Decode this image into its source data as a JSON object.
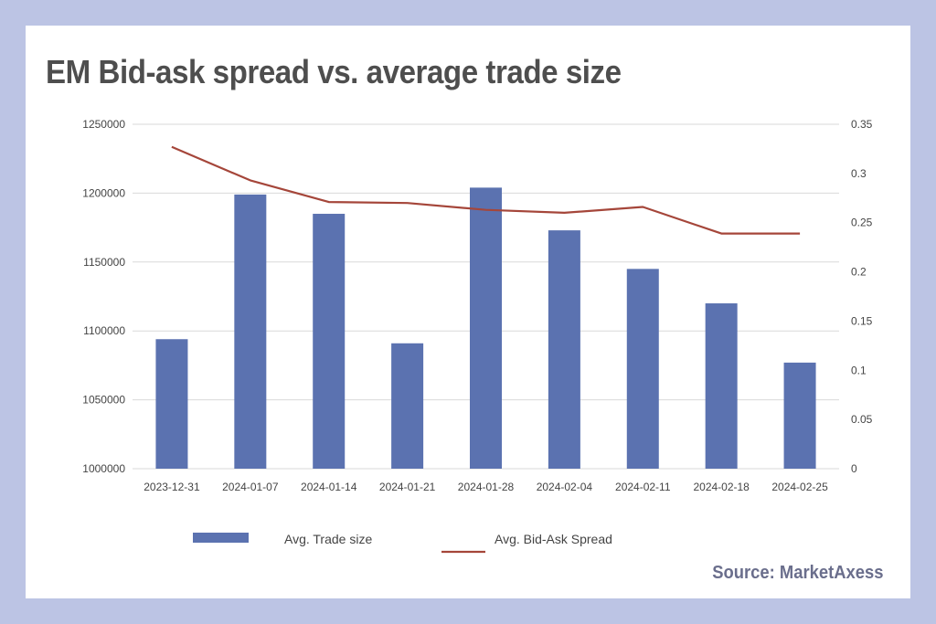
{
  "page": {
    "title": "EM Bid-ask spread vs. average trade size",
    "source": "Source: MarketAxess"
  },
  "colors": {
    "background": "#bcc4e4",
    "card": "#ffffff",
    "bar": "#5b72b0",
    "line": "#a5463a",
    "title": "#4e4e4e",
    "source": "#6a6e8c"
  },
  "chart_data": {
    "type": "bar",
    "title": "EM Bid-ask spread vs. average trade size",
    "categories": [
      "2023-12-31",
      "2024-01-07",
      "2024-01-14",
      "2024-01-21",
      "2024-01-28",
      "2024-02-04",
      "2024-02-11",
      "2024-02-18",
      "2024-02-25"
    ],
    "series": [
      {
        "name": "Avg. Trade size",
        "type": "bar",
        "axis": "left",
        "values": [
          1094000,
          1199000,
          1185000,
          1091000,
          1204000,
          1173000,
          1145000,
          1120000,
          1077000
        ]
      },
      {
        "name": "Avg. Bid-Ask Spread",
        "type": "line",
        "axis": "right",
        "values": [
          0.327,
          0.293,
          0.271,
          0.27,
          0.263,
          0.26,
          0.266,
          0.239,
          0.239
        ]
      }
    ],
    "y_left": {
      "min": 1000000,
      "max": 1250000,
      "ticks": [
        "1000000",
        "1050000",
        "1100000",
        "1150000",
        "1200000",
        "1250000"
      ]
    },
    "y_right": {
      "min": 0,
      "max": 0.35,
      "ticks": [
        "0",
        "0.05",
        "0.1",
        "0.15",
        "0.2",
        "0.25",
        "0.3",
        "0.35"
      ]
    },
    "grid": true,
    "legend": "bottom"
  }
}
